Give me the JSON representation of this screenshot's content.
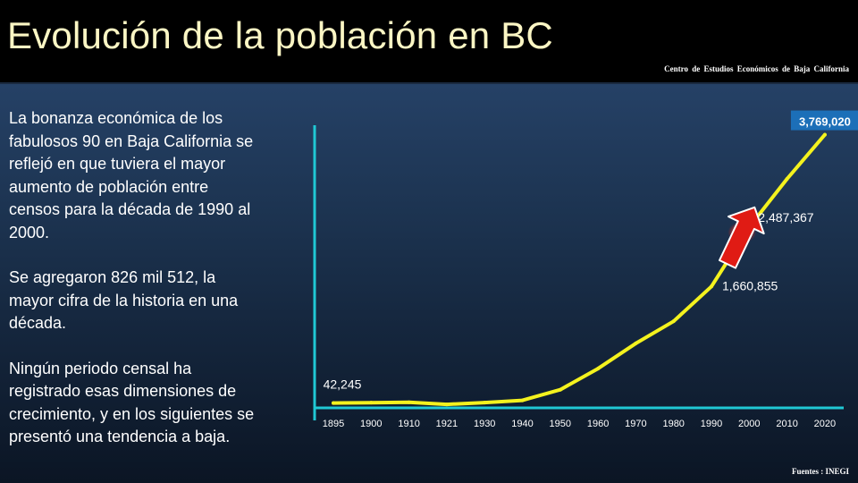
{
  "header": {
    "title": "Evolución de la población en BC",
    "source_top": "Centro de Estudios  Económicos  de  Baja California"
  },
  "body": {
    "paragraphs": [
      "La bonanza económica de los\nfabulosos 90 en Baja California se\nreflejó en que tuviera el mayor\naumento de población entre\ncensos para la década de 1990 al\n2000.",
      "Se  agregaron 826 mil 512, la\nmayor cifra de la historia en una\ndécada.",
      "Ningún periodo censal ha\nregistrado esas dimensiones de\ncrecimiento, y en los siguientes se\npresentó una tendencia a baja."
    ]
  },
  "footer": {
    "source": "Fuentes : INEGI"
  },
  "colors": {
    "line": "#f4f21e",
    "axis": "#20c8d4",
    "arrow": "#e01b14",
    "highlight_box": "#1c6fb8"
  },
  "chart_data": {
    "type": "line",
    "title": "",
    "xlabel": "",
    "ylabel": "",
    "categories": [
      "1895",
      "1900",
      "1910",
      "1921",
      "1930",
      "1940",
      "1950",
      "1960",
      "1970",
      "1980",
      "1990",
      "2000",
      "2010",
      "2020"
    ],
    "values": [
      42245,
      47624,
      52272,
      23537,
      48327,
      78907,
      226965,
      520165,
      870421,
      1177886,
      1660855,
      2487367,
      3155070,
      3769020
    ],
    "ylim": [
      0,
      3950000
    ],
    "grid": false,
    "legend": "none",
    "annotations": [
      {
        "category": "1895",
        "label": "42,245",
        "style": "plain"
      },
      {
        "category": "1990",
        "label": "1,660,855",
        "style": "plain"
      },
      {
        "category": "2000",
        "label": "2,487,367",
        "style": "plain"
      },
      {
        "category": "2020",
        "label": "3,769,020",
        "style": "boxed"
      }
    ],
    "arrow": {
      "from_category": "1990",
      "to_category": "2000"
    }
  }
}
